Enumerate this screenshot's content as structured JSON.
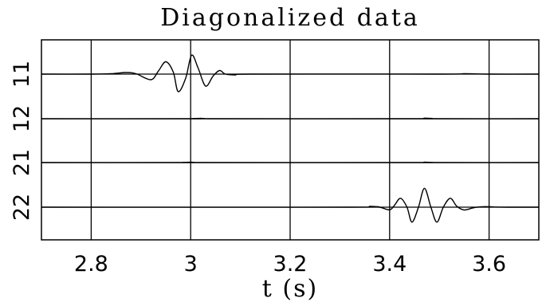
{
  "chart_data": {
    "type": "line",
    "title": "Diagonalized data",
    "xlabel": "t (s)",
    "ylabel": "",
    "xlim": [
      2.7,
      3.7
    ],
    "x_ticks": [
      "2.8",
      "3",
      "3.2",
      "3.4",
      "3.6"
    ],
    "x_tick_values": [
      2.8,
      3.0,
      3.2,
      3.4,
      3.6
    ],
    "grid": true,
    "series": [
      {
        "name": "11",
        "points": [
          [
            2.7,
            0.0
          ],
          [
            2.8,
            0.0
          ],
          [
            2.84,
            0.02
          ],
          [
            2.87,
            0.08
          ],
          [
            2.89,
            0.02
          ],
          [
            2.92,
            -0.28
          ],
          [
            2.935,
            0.15
          ],
          [
            2.95,
            0.62
          ],
          [
            2.965,
            0.1
          ],
          [
            2.975,
            -0.88
          ],
          [
            2.99,
            -0.2
          ],
          [
            3.002,
            0.95
          ],
          [
            3.015,
            0.3
          ],
          [
            3.03,
            -0.6
          ],
          [
            3.045,
            -0.1
          ],
          [
            3.058,
            0.18
          ],
          [
            3.07,
            0.0
          ],
          [
            3.09,
            -0.04
          ],
          [
            3.12,
            0.0
          ],
          [
            3.5,
            0.0
          ],
          [
            3.55,
            0.02
          ],
          [
            3.6,
            0.0
          ],
          [
            3.7,
            0.0
          ]
        ]
      },
      {
        "name": "12",
        "points": [
          [
            2.7,
            0.0
          ],
          [
            3.0,
            0.0
          ],
          [
            3.02,
            0.02
          ],
          [
            3.04,
            0.0
          ],
          [
            3.45,
            0.0
          ],
          [
            3.47,
            0.03
          ],
          [
            3.49,
            0.0
          ],
          [
            3.7,
            0.0
          ]
        ]
      },
      {
        "name": "21",
        "points": [
          [
            2.7,
            0.0
          ],
          [
            2.98,
            0.0
          ],
          [
            3.0,
            0.02
          ],
          [
            3.02,
            0.0
          ],
          [
            3.45,
            0.0
          ],
          [
            3.47,
            0.02
          ],
          [
            3.49,
            0.0
          ],
          [
            3.7,
            0.0
          ]
        ]
      },
      {
        "name": "22",
        "points": [
          [
            2.7,
            0.0
          ],
          [
            3.32,
            0.0
          ],
          [
            3.36,
            0.04
          ],
          [
            3.38,
            0.0
          ],
          [
            3.4,
            -0.13
          ],
          [
            3.41,
            0.1
          ],
          [
            3.422,
            0.45
          ],
          [
            3.435,
            0.0
          ],
          [
            3.445,
            -0.75
          ],
          [
            3.458,
            0.0
          ],
          [
            3.47,
            0.95
          ],
          [
            3.483,
            0.0
          ],
          [
            3.495,
            -0.75
          ],
          [
            3.508,
            0.0
          ],
          [
            3.522,
            0.45
          ],
          [
            3.535,
            0.05
          ],
          [
            3.55,
            -0.14
          ],
          [
            3.57,
            -0.02
          ],
          [
            3.59,
            0.03
          ],
          [
            3.61,
            0.01
          ],
          [
            3.64,
            0.0
          ],
          [
            3.7,
            0.0
          ]
        ]
      }
    ]
  }
}
